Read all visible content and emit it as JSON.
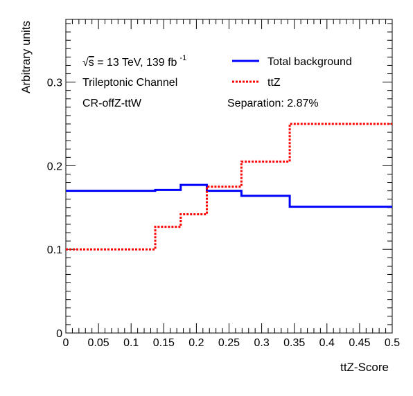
{
  "chart_data": {
    "type": "line",
    "style": "step-histogram",
    "xlabel": "ttZ-Score",
    "ylabel": "Arbitrary units",
    "xlim": [
      0,
      0.5
    ],
    "ylim": [
      0,
      0.375
    ],
    "x_ticks": [
      "0",
      "0.05",
      "0.1",
      "0.15",
      "0.2",
      "0.25",
      "0.3",
      "0.35",
      "0.4",
      "0.45",
      "0.5"
    ],
    "y_ticks": [
      "0",
      "0.1",
      "0.2",
      "0.3"
    ],
    "bin_edges": [
      0,
      0.137,
      0.176,
      0.216,
      0.269,
      0.343,
      0.5
    ],
    "series": [
      {
        "name": "Total background",
        "color": "#0000ff",
        "line": "solid",
        "values": [
          0.17,
          0.171,
          0.177,
          0.17,
          0.164,
          0.151
        ]
      },
      {
        "name": "ttZ",
        "color": "#ff0000",
        "line": "dotted",
        "values": [
          0.1,
          0.127,
          0.142,
          0.175,
          0.205,
          0.25
        ]
      }
    ],
    "annotations": {
      "energy_prefix": "√",
      "energy_s": "s",
      "energy_text": " = 13 TeV, 139 fb",
      "energy_sup": "-1",
      "channel": "Trileptonic Channel",
      "region": "CR-offZ-ttW",
      "separation": "Separation: 2.87%"
    },
    "legend_position": "top-right",
    "grid": false
  }
}
